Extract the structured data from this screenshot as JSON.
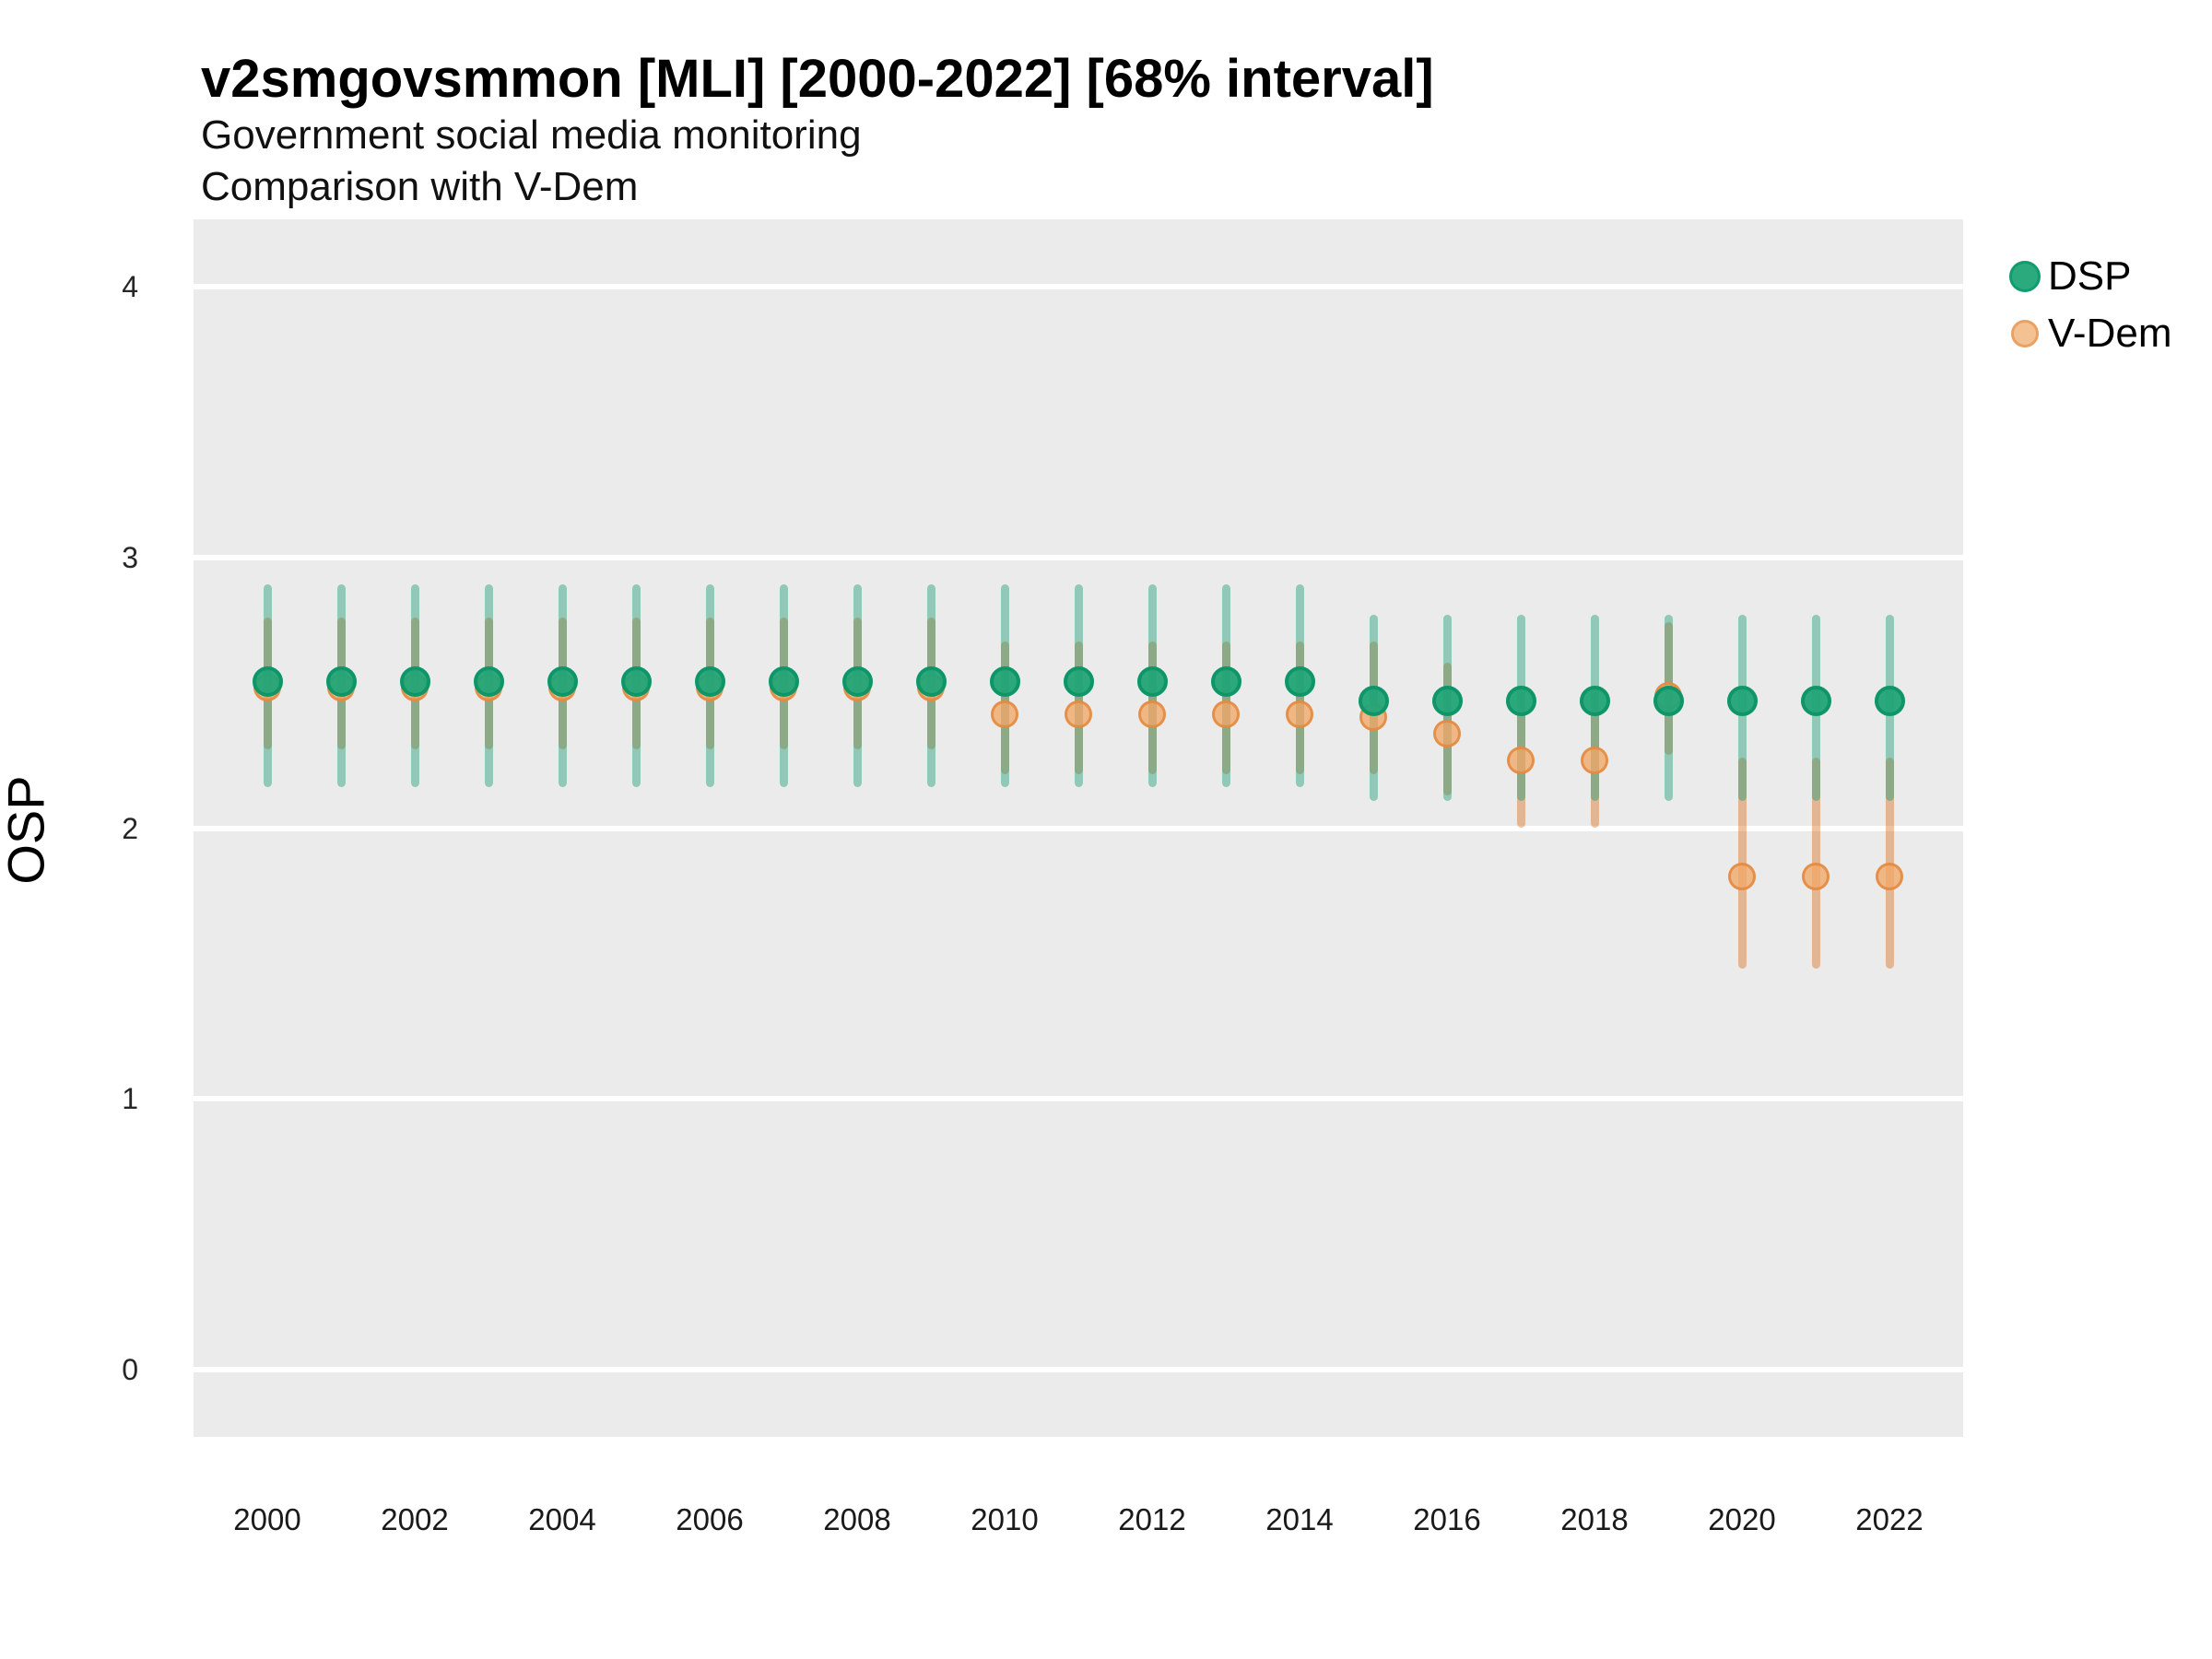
{
  "header": {
    "title": "v2smgovsmmon [MLI] [2000-2022] [68% interval]",
    "subtitle": "Government social media monitoring",
    "subtitle2": "Comparison with V-Dem"
  },
  "axes": {
    "y_title": "OSP",
    "y_ticks": [
      0,
      1,
      2,
      3,
      4
    ],
    "x_ticks": [
      2000,
      2002,
      2004,
      2006,
      2008,
      2010,
      2012,
      2014,
      2016,
      2018,
      2020,
      2022
    ]
  },
  "legend": {
    "items": [
      {
        "label": "DSP",
        "fill": "#2BAA7E",
        "stroke": "#119C70",
        "size": 34
      },
      {
        "label": "V-Dem",
        "fill": "#F4C193",
        "stroke": "#E9A264",
        "size": 30
      }
    ]
  },
  "colors": {
    "panel_bg": "#EBEBEB",
    "gridline": "#FFFFFF",
    "dsp_bar": "rgba(27,158,119,0.44)",
    "vdem_bar": "rgba(217,95,2,0.38)",
    "dsp_point_fill": "rgba(34,164,119,0.95)",
    "dsp_point_stroke": "rgba(14,150,105,1)",
    "vdem_point_fill": "rgba(240,168,105,0.78)",
    "vdem_point_stroke": "rgba(228,136,61,0.85)"
  },
  "chart_data": {
    "type": "scatter",
    "subtype": "points-with-error-intervals",
    "interval": "68%",
    "title": "v2smgovsmmon [MLI] [2000-2022] [68% interval]",
    "xlabel": "",
    "ylabel": "OSP",
    "xlim": [
      1999,
      2023
    ],
    "ylim": [
      -0.25,
      4.25
    ],
    "grid": "white-major-horizontal",
    "legend_position": "right-top",
    "x": [
      2000,
      2001,
      2002,
      2003,
      2004,
      2005,
      2006,
      2007,
      2008,
      2009,
      2010,
      2011,
      2012,
      2013,
      2014,
      2015,
      2016,
      2017,
      2018,
      2019,
      2020,
      2021,
      2022
    ],
    "series": [
      {
        "name": "DSP",
        "values": [
          2.54,
          2.54,
          2.54,
          2.54,
          2.54,
          2.54,
          2.54,
          2.54,
          2.54,
          2.54,
          2.54,
          2.54,
          2.54,
          2.54,
          2.54,
          2.47,
          2.47,
          2.47,
          2.47,
          2.47,
          2.47,
          2.47,
          2.47
        ],
        "lo": [
          2.15,
          2.15,
          2.15,
          2.15,
          2.15,
          2.15,
          2.15,
          2.15,
          2.15,
          2.15,
          2.15,
          2.15,
          2.15,
          2.15,
          2.15,
          2.1,
          2.1,
          2.1,
          2.1,
          2.1,
          2.1,
          2.1,
          2.1
        ],
        "hi": [
          2.9,
          2.9,
          2.9,
          2.9,
          2.9,
          2.9,
          2.9,
          2.9,
          2.9,
          2.9,
          2.9,
          2.9,
          2.9,
          2.9,
          2.9,
          2.79,
          2.79,
          2.79,
          2.79,
          2.79,
          2.79,
          2.79,
          2.79
        ]
      },
      {
        "name": "V-Dem",
        "values": [
          2.52,
          2.52,
          2.52,
          2.52,
          2.52,
          2.52,
          2.52,
          2.52,
          2.52,
          2.52,
          2.42,
          2.42,
          2.42,
          2.42,
          2.42,
          2.41,
          2.35,
          2.25,
          2.25,
          2.49,
          1.82,
          1.82,
          1.82
        ],
        "lo": [
          2.29,
          2.29,
          2.29,
          2.29,
          2.29,
          2.29,
          2.29,
          2.29,
          2.29,
          2.29,
          2.2,
          2.2,
          2.2,
          2.2,
          2.2,
          2.2,
          2.12,
          2.0,
          2.0,
          2.27,
          1.48,
          1.48,
          1.48
        ],
        "hi": [
          2.78,
          2.78,
          2.78,
          2.78,
          2.78,
          2.78,
          2.78,
          2.78,
          2.78,
          2.78,
          2.69,
          2.69,
          2.69,
          2.69,
          2.69,
          2.69,
          2.61,
          2.52,
          2.52,
          2.76,
          2.26,
          2.26,
          2.26
        ]
      }
    ]
  }
}
